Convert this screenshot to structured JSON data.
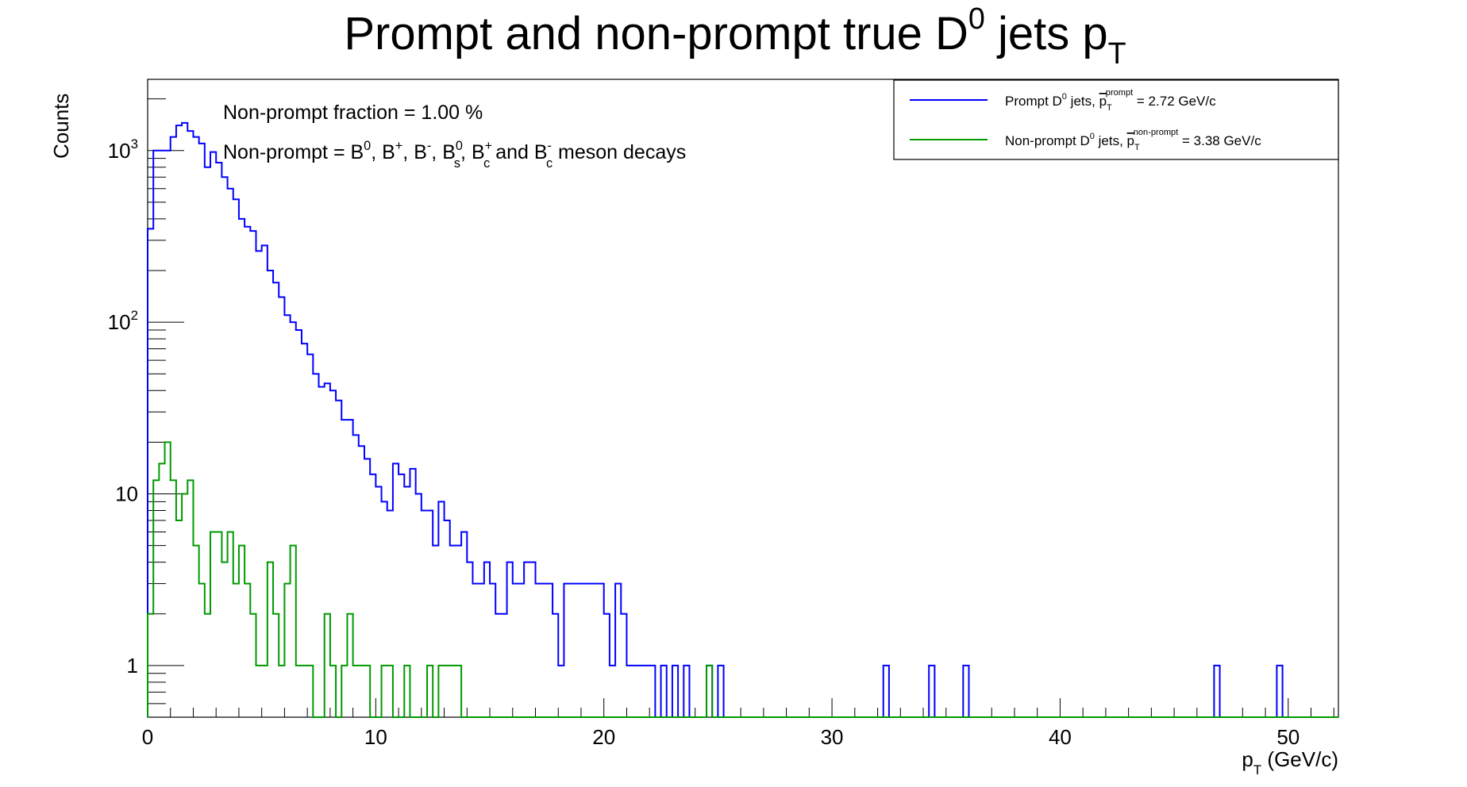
{
  "chart_data": {
    "type": "histogram-step",
    "title": "Prompt and non-prompt true D0 jets pT",
    "title_parts": {
      "main": "Prompt and non-prompt true D",
      "sup": "0",
      "mid": " jets p",
      "sub": "T"
    },
    "xlabel": "pT (GeV/c)",
    "xlabel_parts": {
      "p": "p",
      "sub": "T",
      "rest": " (GeV/c)"
    },
    "ylabel": "Counts",
    "xlim": [
      0,
      52.2
    ],
    "ylim": [
      0.5,
      2600
    ],
    "yscale": "log",
    "bin_width": 0.25,
    "x_ticks": [
      0,
      10,
      20,
      30,
      40,
      50
    ],
    "y_ticks": [
      {
        "value": 1000,
        "base": "10",
        "exp": "3"
      },
      {
        "value": 100,
        "base": "10",
        "exp": "2"
      },
      {
        "value": 10,
        "base": "10",
        "exp": ""
      },
      {
        "value": 1,
        "base": "1",
        "exp": ""
      }
    ],
    "annotations": [
      {
        "text": "Non-prompt fraction = 1.00 %"
      },
      {
        "text": "Non-prompt = B0, B+, B-, Bs0, Bc+ and Bc- meson decays"
      }
    ],
    "annotation2_parts": {
      "lead": "Non-prompt = B",
      "b0_sup": "0",
      "bp": ", B",
      "bp_sup": "+",
      "bm": ", B",
      "bm_sup": "-",
      "bs": ", B",
      "bs_sup": "0",
      "bs_sub": "s",
      "bc": ", B",
      "bc_sup": "+",
      "bc_sub": "c",
      "and": " and B",
      "bc2_sup": "-",
      "bc2_sub": "c",
      "tail": " meson decays"
    },
    "legend": {
      "position": "top-right",
      "entries": [
        {
          "name": "Prompt D0 jets, mean pT prompt = 2.72 GeV/c",
          "color": "#0000ff",
          "parts": {
            "a": "Prompt D",
            "sup": "0",
            "b": " jets, ",
            "p": "p",
            "sub": "T",
            "super": "prompt",
            "c": " = 2.72 GeV/c"
          }
        },
        {
          "name": "Non-prompt D0 jets, mean pT non-prompt = 3.38 GeV/c",
          "color": "#009900",
          "parts": {
            "a": "Non-prompt D",
            "sup": "0",
            "b": " jets, ",
            "p": "p",
            "sub": "T",
            "super": "non-prompt",
            "c": " = 3.38 GeV/c"
          }
        }
      ]
    },
    "series": [
      {
        "name": "Prompt D0 jets",
        "color": "#0000ff",
        "values": [
          350,
          1000,
          1000,
          1000,
          1200,
          1400,
          1450,
          1300,
          1200,
          1100,
          800,
          980,
          850,
          700,
          600,
          520,
          400,
          360,
          340,
          260,
          280,
          200,
          170,
          140,
          110,
          100,
          90,
          75,
          65,
          50,
          42,
          44,
          40,
          35,
          27,
          27,
          22,
          19,
          16,
          13,
          11,
          9,
          8,
          15,
          13,
          11,
          14,
          10,
          8,
          8,
          5,
          9,
          7,
          5,
          5,
          6,
          4,
          3,
          3,
          4,
          3,
          2,
          2,
          4,
          3,
          3,
          4,
          4,
          3,
          3,
          3,
          2,
          1,
          3,
          3,
          3,
          3,
          3,
          3,
          3,
          2,
          1,
          3,
          2,
          1,
          1,
          1,
          1,
          1,
          0,
          1,
          0,
          1,
          0,
          1,
          0,
          0,
          0,
          1,
          0,
          1,
          0,
          0,
          0,
          0,
          0,
          0,
          0,
          0,
          0,
          0,
          0,
          0,
          0,
          0,
          0,
          0,
          0,
          0,
          0,
          0,
          0,
          0,
          0,
          0,
          0,
          0,
          0,
          0,
          1,
          0,
          0,
          0,
          0,
          0,
          0,
          0,
          1,
          0,
          0,
          0,
          0,
          0,
          1,
          0,
          0,
          0,
          0,
          0,
          0,
          0,
          0,
          0,
          0,
          0,
          0,
          0,
          0,
          0,
          0,
          0,
          0,
          0,
          0,
          0,
          0,
          0,
          0,
          0,
          0,
          0,
          0,
          0,
          0,
          0,
          0,
          0,
          0,
          0,
          0,
          0,
          0,
          0,
          0,
          0,
          0,
          0,
          1,
          0,
          0,
          0,
          0,
          0,
          0,
          0,
          0,
          0,
          0,
          1,
          0,
          0,
          0,
          0,
          0,
          0,
          0
        ]
      },
      {
        "name": "Non-prompt D0 jets",
        "color": "#009900",
        "values": [
          2,
          12,
          15,
          20,
          12,
          7,
          10,
          12,
          5,
          3,
          2,
          6,
          6,
          4,
          6,
          3,
          5,
          3,
          2,
          1,
          1,
          4,
          2,
          1,
          3,
          5,
          1,
          1,
          1,
          0,
          0,
          2,
          1,
          0,
          1,
          2,
          1,
          1,
          1,
          0,
          0,
          1,
          1,
          0,
          0,
          1,
          0,
          0,
          0,
          1,
          0,
          1,
          1,
          1,
          1,
          0,
          0,
          0,
          0,
          0,
          0,
          0,
          0,
          0,
          0,
          0,
          0,
          0,
          0,
          0,
          0,
          0,
          0,
          0,
          0,
          0,
          0,
          0,
          0,
          0,
          0,
          0,
          0,
          0,
          0,
          0,
          0,
          0,
          0,
          0,
          0,
          0,
          0,
          0,
          0,
          0,
          0,
          0,
          1,
          0,
          0,
          0,
          0,
          0,
          0,
          0,
          0,
          0,
          0,
          0,
          0,
          0,
          0,
          0,
          0,
          0,
          0,
          0,
          0,
          0,
          0,
          0,
          0,
          0,
          0,
          0,
          0,
          0,
          0,
          0,
          0,
          0,
          0,
          0,
          0,
          0,
          0,
          0,
          0,
          0,
          0,
          0,
          0,
          0,
          0,
          0,
          0,
          0,
          0,
          0,
          0,
          0,
          0,
          0,
          0,
          0,
          0,
          0,
          0,
          0,
          0,
          0,
          0,
          0,
          0,
          0,
          0,
          0,
          0,
          0,
          0,
          0,
          0,
          0,
          0,
          0,
          0,
          0,
          0,
          0,
          0,
          0,
          0,
          0,
          0,
          0,
          0,
          0,
          0,
          0,
          0,
          0,
          0,
          0,
          0,
          0,
          0,
          0,
          0,
          0,
          0,
          0,
          0,
          0,
          0,
          0,
          0,
          0,
          0
        ]
      }
    ]
  }
}
